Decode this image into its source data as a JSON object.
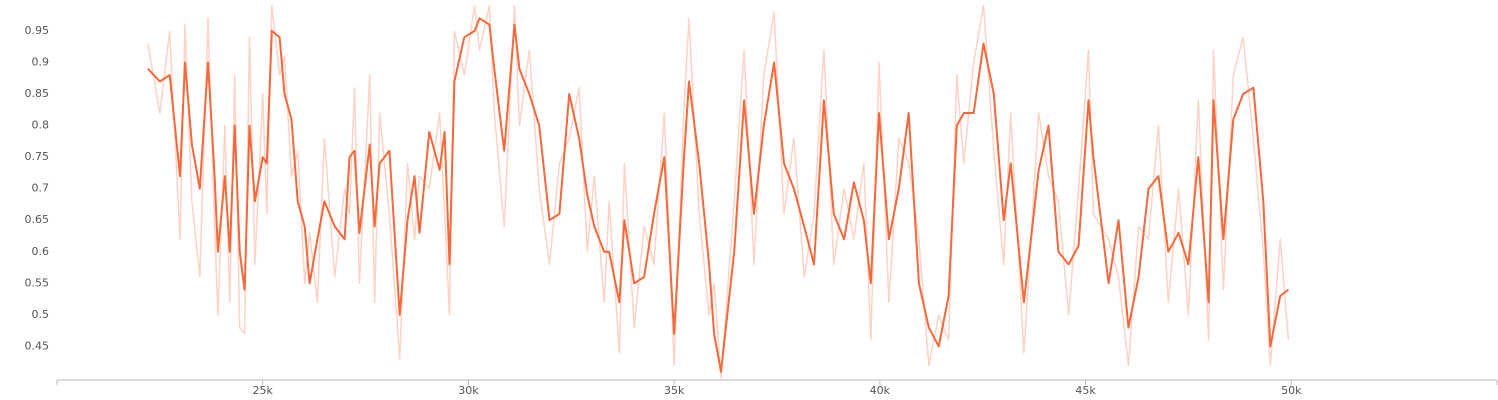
{
  "chart_data": {
    "type": "line",
    "x": [
      22210,
      22500,
      22740,
      22990,
      23110,
      23280,
      23470,
      23670,
      23830,
      23910,
      24080,
      24200,
      24320,
      24440,
      24560,
      24680,
      24810,
      25000,
      25100,
      25220,
      25410,
      25530,
      25700,
      25850,
      26020,
      26140,
      26330,
      26500,
      26750,
      26990,
      27110,
      27230,
      27350,
      27600,
      27720,
      27840,
      28080,
      28330,
      28520,
      28690,
      28810,
      29050,
      29300,
      29420,
      29540,
      29660,
      29900,
      30150,
      30270,
      30510,
      30630,
      30870,
      31120,
      31240,
      31480,
      31720,
      31970,
      32210,
      32450,
      32690,
      32890,
      33060,
      33300,
      33420,
      33670,
      33790,
      34030,
      34270,
      34510,
      34760,
      35000,
      35240,
      35360,
      35610,
      35850,
      35970,
      36140,
      36460,
      36700,
      36940,
      37180,
      37430,
      37670,
      37910,
      38160,
      38400,
      38640,
      38880,
      39130,
      39370,
      39610,
      39780,
      39980,
      40220,
      40460,
      40700,
      40950,
      41190,
      41430,
      41670,
      41870,
      42040,
      42280,
      42520,
      42770,
      43010,
      43180,
      43500,
      43860,
      44100,
      44340,
      44590,
      44830,
      45070,
      45190,
      45560,
      45800,
      46040,
      46290,
      46530,
      46770,
      47010,
      47260,
      47500,
      47740,
      47990,
      48110,
      48350,
      48590,
      48830,
      49080,
      49320,
      49490,
      49730,
      49930
    ],
    "series": [
      {
        "color": "#fcd3c5",
        "values": [
          0.93,
          0.82,
          0.95,
          0.62,
          0.96,
          0.68,
          0.56,
          0.97,
          0.64,
          0.5,
          0.8,
          0.52,
          0.88,
          0.48,
          0.47,
          0.94,
          0.58,
          0.85,
          0.66,
          0.99,
          0.88,
          0.91,
          0.72,
          0.76,
          0.55,
          0.63,
          0.52,
          0.78,
          0.56,
          0.7,
          0.66,
          0.86,
          0.55,
          0.88,
          0.52,
          0.82,
          0.66,
          0.43,
          0.74,
          0.62,
          0.72,
          0.7,
          0.82,
          0.66,
          0.5,
          0.95,
          0.88,
          0.99,
          0.92,
          0.99,
          0.82,
          0.64,
          0.99,
          0.8,
          0.92,
          0.7,
          0.58,
          0.74,
          0.78,
          0.86,
          0.6,
          0.72,
          0.52,
          0.68,
          0.44,
          0.74,
          0.48,
          0.64,
          0.58,
          0.82,
          0.42,
          0.83,
          0.97,
          0.66,
          0.5,
          0.55,
          0.4,
          0.68,
          0.92,
          0.58,
          0.88,
          0.98,
          0.66,
          0.78,
          0.56,
          0.66,
          0.92,
          0.58,
          0.7,
          0.62,
          0.74,
          0.46,
          0.9,
          0.52,
          0.78,
          0.74,
          0.62,
          0.42,
          0.5,
          0.46,
          0.88,
          0.74,
          0.9,
          0.99,
          0.76,
          0.58,
          0.82,
          0.44,
          0.82,
          0.72,
          0.68,
          0.5,
          0.7,
          0.92,
          0.66,
          0.62,
          0.56,
          0.42,
          0.64,
          0.62,
          0.8,
          0.52,
          0.7,
          0.5,
          0.84,
          0.46,
          0.92,
          0.54,
          0.88,
          0.94,
          0.78,
          0.6,
          0.42,
          0.62,
          0.46
        ]
      },
      {
        "color": "#f4693c",
        "values": [
          0.89,
          0.87,
          0.88,
          0.72,
          0.9,
          0.77,
          0.7,
          0.9,
          0.72,
          0.6,
          0.72,
          0.6,
          0.8,
          0.6,
          0.54,
          0.8,
          0.68,
          0.75,
          0.74,
          0.95,
          0.94,
          0.85,
          0.81,
          0.68,
          0.64,
          0.55,
          0.62,
          0.68,
          0.64,
          0.62,
          0.75,
          0.76,
          0.63,
          0.77,
          0.64,
          0.74,
          0.76,
          0.5,
          0.65,
          0.72,
          0.63,
          0.79,
          0.73,
          0.79,
          0.58,
          0.87,
          0.94,
          0.95,
          0.97,
          0.96,
          0.89,
          0.76,
          0.96,
          0.89,
          0.85,
          0.8,
          0.65,
          0.66,
          0.85,
          0.78,
          0.69,
          0.64,
          0.6,
          0.6,
          0.52,
          0.65,
          0.55,
          0.56,
          0.66,
          0.75,
          0.47,
          0.75,
          0.87,
          0.74,
          0.58,
          0.47,
          0.41,
          0.6,
          0.84,
          0.66,
          0.8,
          0.9,
          0.74,
          0.7,
          0.64,
          0.58,
          0.84,
          0.66,
          0.62,
          0.71,
          0.65,
          0.55,
          0.82,
          0.62,
          0.7,
          0.82,
          0.55,
          0.48,
          0.45,
          0.53,
          0.8,
          0.82,
          0.82,
          0.93,
          0.85,
          0.65,
          0.74,
          0.52,
          0.73,
          0.8,
          0.6,
          0.58,
          0.61,
          0.84,
          0.75,
          0.55,
          0.65,
          0.48,
          0.56,
          0.7,
          0.72,
          0.6,
          0.63,
          0.58,
          0.75,
          0.52,
          0.84,
          0.62,
          0.81,
          0.85,
          0.86,
          0.68,
          0.45,
          0.53,
          0.54
        ]
      }
    ],
    "xlim": [
      20000,
      55000
    ],
    "xticks": [
      {
        "value": 25000,
        "label": "25k"
      },
      {
        "value": 30000,
        "label": "30k"
      },
      {
        "value": 35000,
        "label": "35k"
      },
      {
        "value": 40000,
        "label": "40k"
      },
      {
        "value": 45000,
        "label": "45k"
      },
      {
        "value": 50000,
        "label": "50k"
      }
    ],
    "ylim": [
      0.4,
      0.999
    ],
    "yticks": [
      0.45,
      0.5,
      0.55,
      0.6,
      0.65,
      0.7,
      0.75,
      0.8,
      0.85,
      0.9,
      0.95
    ],
    "grid": false
  }
}
